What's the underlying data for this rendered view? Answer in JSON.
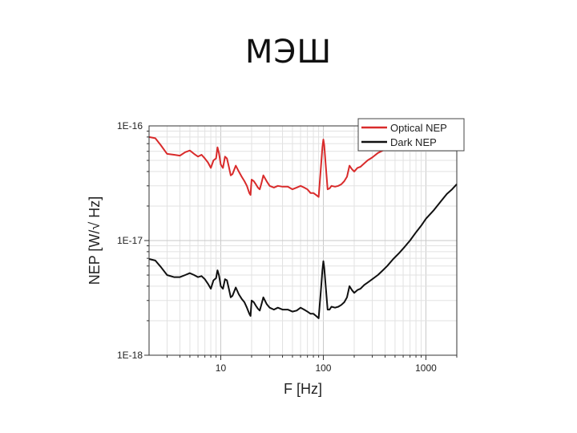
{
  "slide": {
    "title": "МЭШ"
  },
  "chart_data": {
    "type": "line",
    "xlabel": "F  [Hz]",
    "ylabel": "NEP [W/√ Hz]",
    "x_scale": "log",
    "y_scale": "log",
    "xlim": [
      2,
      2000
    ],
    "ylim": [
      1e-18,
      1e-16
    ],
    "x_ticks": [
      10,
      100,
      1000
    ],
    "x_tick_labels": [
      "10",
      "100",
      "1000"
    ],
    "y_ticks": [
      1e-18,
      1e-17,
      1e-16
    ],
    "y_tick_labels": [
      "1E-18",
      "1E-17",
      "1E-16"
    ],
    "grid": true,
    "legend_position": "top-right",
    "series": [
      {
        "name": "Optical NEP",
        "color": "#d92b2b",
        "x": [
          2,
          2.3,
          2.6,
          3,
          3.5,
          4,
          4.5,
          5,
          5.5,
          6,
          6.5,
          7,
          7.5,
          8,
          8.5,
          9,
          9.3,
          9.6,
          10,
          10.5,
          11,
          11.5,
          12,
          12.5,
          13,
          14,
          15,
          16,
          17,
          18,
          19,
          19.5,
          20,
          21,
          22,
          23,
          24,
          25,
          26,
          28,
          30,
          33,
          36,
          40,
          45,
          50,
          55,
          60,
          65,
          70,
          75,
          80,
          85,
          90,
          95,
          98,
          100,
          102,
          105,
          110,
          115,
          120,
          130,
          140,
          150,
          160,
          170,
          180,
          190,
          200,
          215,
          230,
          250,
          270,
          300,
          340,
          380,
          420
        ],
        "y": [
          8e-17,
          7.8e-17,
          6.8e-17,
          5.7e-17,
          5.6e-17,
          5.5e-17,
          5.9e-17,
          6.1e-17,
          5.7e-17,
          5.4e-17,
          5.6e-17,
          5.2e-17,
          4.8e-17,
          4.3e-17,
          5e-17,
          5.2e-17,
          6.5e-17,
          5.8e-17,
          4.6e-17,
          4.3e-17,
          5.4e-17,
          5.2e-17,
          4.4e-17,
          3.7e-17,
          3.8e-17,
          4.5e-17,
          4e-17,
          3.6e-17,
          3.3e-17,
          3e-17,
          2.6e-17,
          2.5e-17,
          3.4e-17,
          3.3e-17,
          3.1e-17,
          2.9e-17,
          2.8e-17,
          3.2e-17,
          3.7e-17,
          3.3e-17,
          3e-17,
          2.9e-17,
          3e-17,
          2.95e-17,
          2.95e-17,
          2.8e-17,
          2.9e-17,
          3e-17,
          2.9e-17,
          2.8e-17,
          2.6e-17,
          2.6e-17,
          2.5e-17,
          2.4e-17,
          4.5e-17,
          6.5e-17,
          7.6e-17,
          6.8e-17,
          4.8e-17,
          2.8e-17,
          2.85e-17,
          3e-17,
          2.95e-17,
          3e-17,
          3.1e-17,
          3.3e-17,
          3.6e-17,
          4.5e-17,
          4.2e-17,
          4e-17,
          4.3e-17,
          4.4e-17,
          4.7e-17,
          5e-17,
          5.3e-17,
          5.8e-17,
          6.1e-17,
          6.4e-17
        ]
      },
      {
        "name": "Dark NEP",
        "color": "#111111",
        "x": [
          2,
          2.3,
          2.6,
          3,
          3.5,
          4,
          4.5,
          5,
          5.5,
          6,
          6.5,
          7,
          7.5,
          8,
          8.5,
          9,
          9.3,
          9.6,
          10,
          10.5,
          11,
          11.5,
          12,
          12.5,
          13,
          14,
          15,
          16,
          17,
          18,
          19,
          19.5,
          20,
          21,
          22,
          23,
          24,
          25,
          26,
          28,
          30,
          33,
          36,
          40,
          45,
          50,
          55,
          60,
          65,
          70,
          75,
          80,
          85,
          90,
          95,
          98,
          100,
          102,
          105,
          110,
          115,
          120,
          130,
          140,
          150,
          160,
          170,
          180,
          190,
          200,
          215,
          230,
          250,
          270,
          300,
          340,
          380,
          420,
          480,
          550,
          620,
          700,
          800,
          900,
          1000,
          1200,
          1400,
          1600,
          1800,
          2000
        ],
        "y": [
          6.9e-18,
          6.7e-18,
          5.9e-18,
          5e-18,
          4.8e-18,
          4.8e-18,
          5e-18,
          5.2e-18,
          5e-18,
          4.8e-18,
          4.9e-18,
          4.6e-18,
          4.2e-18,
          3.8e-18,
          4.5e-18,
          4.7e-18,
          5.5e-18,
          5e-18,
          4e-18,
          3.8e-18,
          4.6e-18,
          4.5e-18,
          3.8e-18,
          3.2e-18,
          3.3e-18,
          3.9e-18,
          3.4e-18,
          3.1e-18,
          2.9e-18,
          2.6e-18,
          2.3e-18,
          2.2e-18,
          3e-18,
          2.9e-18,
          2.7e-18,
          2.55e-18,
          2.45e-18,
          2.8e-18,
          3.2e-18,
          2.8e-18,
          2.6e-18,
          2.5e-18,
          2.6e-18,
          2.5e-18,
          2.5e-18,
          2.4e-18,
          2.45e-18,
          2.6e-18,
          2.5e-18,
          2.4e-18,
          2.3e-18,
          2.3e-18,
          2.2e-18,
          2.1e-18,
          3.8e-18,
          5.5e-18,
          6.6e-18,
          5.8e-18,
          4.2e-18,
          2.5e-18,
          2.5e-18,
          2.65e-18,
          2.6e-18,
          2.65e-18,
          2.75e-18,
          2.9e-18,
          3.2e-18,
          4e-18,
          3.7e-18,
          3.5e-18,
          3.7e-18,
          3.8e-18,
          4.1e-18,
          4.3e-18,
          4.6e-18,
          5e-18,
          5.5e-18,
          6e-18,
          6.9e-18,
          7.8e-18,
          8.8e-18,
          1e-17,
          1.18e-17,
          1.35e-17,
          1.55e-17,
          1.85e-17,
          2.2e-17,
          2.55e-17,
          2.8e-17,
          3.1e-17
        ]
      }
    ]
  }
}
